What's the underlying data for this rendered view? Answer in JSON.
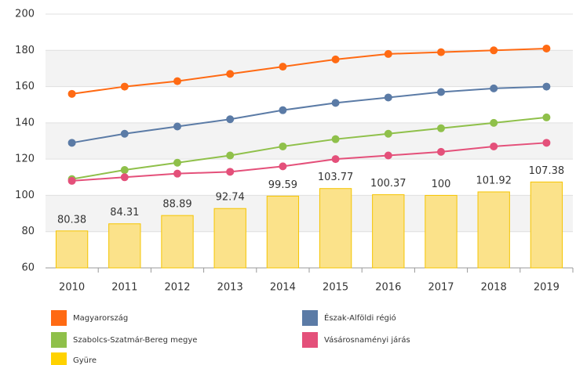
{
  "chart_data": {
    "type": "bar",
    "categories": [
      "2010",
      "2011",
      "2012",
      "2013",
      "2014",
      "2015",
      "2016",
      "2017",
      "2018",
      "2019"
    ],
    "series": [
      {
        "name": "Magyarország",
        "type": "line",
        "color": "#ff6a13",
        "values": [
          156,
          160,
          163,
          167,
          171,
          175,
          178,
          179,
          180,
          181
        ]
      },
      {
        "name": "Észak-Alföldi régió",
        "type": "line",
        "color": "#5b7ba6",
        "values": [
          129,
          134,
          138,
          142,
          147,
          151,
          154,
          157,
          159,
          160
        ]
      },
      {
        "name": "Szabolcs-Szatmár-Bereg megye",
        "type": "line",
        "color": "#8fc04a",
        "values": [
          109,
          114,
          118,
          122,
          127,
          131,
          134,
          137,
          140,
          143
        ]
      },
      {
        "name": "Vásárosnaményi járás",
        "type": "line",
        "color": "#e4507a",
        "values": [
          108,
          110,
          112,
          113,
          116,
          120,
          122,
          124,
          127,
          129
        ]
      },
      {
        "name": "Gyüre",
        "type": "bar",
        "color": "#fbe28a",
        "values": [
          80.38,
          84.31,
          88.89,
          92.74,
          99.59,
          103.77,
          100.37,
          100,
          101.92,
          107.38
        ]
      }
    ],
    "ylim": [
      60,
      200
    ],
    "yticks": [
      60,
      80,
      100,
      120,
      140,
      160,
      180,
      200
    ],
    "grid": true
  }
}
